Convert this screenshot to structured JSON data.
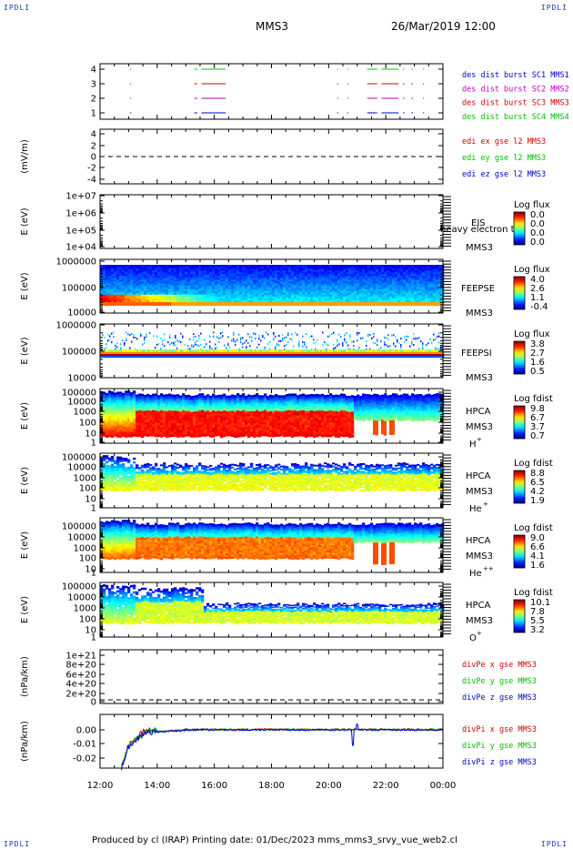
{
  "header": {
    "left": "MMS3",
    "right": "26/Mar/2019 12:00"
  },
  "corner_label": "IPDLI",
  "footer": "Produced by cl (IRAP)   Printing date: 01/Dec/2023   mms_mms3_srvy_vue_web2.cl",
  "time_axis": {
    "ticks": [
      "12:00",
      "14:00",
      "16:00",
      "18:00",
      "20:00",
      "22:00",
      "00:00"
    ],
    "start_hour": 12,
    "end_hour": 24
  },
  "colors": {
    "red": "#d40000",
    "green": "#00c000",
    "blue": "#0000d0",
    "magenta": "#c000c0",
    "black": "#000000"
  },
  "chart_data": [
    {
      "id": "p1",
      "type": "line",
      "ylabel": "",
      "yticks": [
        "1",
        "2",
        "3",
        "4"
      ],
      "legend": [
        {
          "text": "des dist burst SC1 MMS1",
          "color": "#0000d0"
        },
        {
          "text": "des dist burst SC2 MMS2",
          "color": "#c000c0"
        },
        {
          "text": "des dist burst SC3 MMS3",
          "color": "#d40000"
        },
        {
          "text": "des dist burst SC4 MMS4",
          "color": "#00c000"
        }
      ]
    },
    {
      "id": "p2",
      "type": "line",
      "ylabel": "(mV/m)",
      "ylim": [
        -4,
        4
      ],
      "yticks": [
        "4",
        "2",
        "0",
        "-2",
        "-4"
      ],
      "legend": [
        {
          "text": "edi ex gse l2 MMS3",
          "color": "#d40000"
        },
        {
          "text": "edi ey gse l2 MMS3",
          "color": "#00c000"
        },
        {
          "text": "edi ez gse l2 MMS3",
          "color": "#0000d0"
        }
      ]
    },
    {
      "id": "p3",
      "type": "heatmap",
      "ylabel": "E (eV)",
      "yticks": [
        "1e+07",
        "1e+06",
        "1e+05",
        "1e+04"
      ],
      "instrument": "EIS",
      "overlay": "heavy electron to",
      "sc": "MMS3",
      "cbar": {
        "title": "Log flux",
        "labels": [
          "0.0",
          "0.0",
          "0.0",
          "0.0"
        ]
      }
    },
    {
      "id": "p4",
      "type": "heatmap",
      "ylabel": "E (eV)",
      "yticks": [
        "1000000",
        "100000",
        "10000"
      ],
      "instrument": "FEEPSE",
      "sc": "MMS3",
      "cbar": {
        "title": "Log flux",
        "labels": [
          "4.0",
          "2.6",
          "1.1",
          "-0.4"
        ]
      }
    },
    {
      "id": "p5",
      "type": "heatmap",
      "ylabel": "E (eV)",
      "yticks": [
        "1000000",
        "100000",
        "10000"
      ],
      "instrument": "FEEPSI",
      "sc": "MMS3",
      "cbar": {
        "title": "Log flux",
        "labels": [
          "3.8",
          "2.7",
          "1.6",
          "0.5"
        ]
      }
    },
    {
      "id": "p6",
      "type": "heatmap",
      "ylabel": "E (eV)",
      "yticks": [
        "100000",
        "10000",
        "1000",
        "100",
        "10",
        "1"
      ],
      "instrument": "HPCA",
      "sc": "MMS3",
      "species": "H",
      "charge": "+",
      "cbar": {
        "title": "Log fdist",
        "labels": [
          "9.8",
          "6.7",
          "3.7",
          "0.7"
        ]
      }
    },
    {
      "id": "p7",
      "type": "heatmap",
      "ylabel": "E (eV)",
      "yticks": [
        "100000",
        "10000",
        "1000",
        "100",
        "10",
        "1"
      ],
      "instrument": "HPCA",
      "sc": "MMS3",
      "species": "He",
      "charge": "+",
      "cbar": {
        "title": "Log fdist",
        "labels": [
          "8.8",
          "6.5",
          "4.2",
          "1.9"
        ]
      }
    },
    {
      "id": "p8",
      "type": "heatmap",
      "ylabel": "E (eV)",
      "yticks": [
        "100000",
        "10000",
        "1000",
        "100",
        "10",
        "1"
      ],
      "instrument": "HPCA",
      "sc": "MMS3",
      "species": "He",
      "charge": "++",
      "cbar": {
        "title": "Log fdist",
        "labels": [
          "9.0",
          "6.6",
          "4.1",
          "1.6"
        ]
      }
    },
    {
      "id": "p9",
      "type": "heatmap",
      "ylabel": "E (eV)",
      "yticks": [
        "100000",
        "10000",
        "1000",
        "100",
        "10",
        "1"
      ],
      "instrument": "HPCA",
      "sc": "MMS3",
      "species": "O",
      "charge": "+",
      "cbar": {
        "title": "Log fdist",
        "labels": [
          "10.1",
          "7.8",
          "5.5",
          "3.2"
        ]
      }
    },
    {
      "id": "p10",
      "type": "line",
      "ylabel": "(nPa/km)",
      "yticks": [
        "1e+21",
        "8e+20",
        "6e+20",
        "4e+20",
        "2e+20",
        "0"
      ],
      "legend": [
        {
          "text": "divPe x gse MMS3",
          "color": "#d40000"
        },
        {
          "text": "divPe y gse MMS3",
          "color": "#00c000"
        },
        {
          "text": "divPe z gse MMS3",
          "color": "#0000d0"
        }
      ]
    },
    {
      "id": "p11",
      "type": "line",
      "ylabel": "(nPa/km)",
      "ylim": [
        -0.03,
        0.005
      ],
      "yticks": [
        "0.00",
        "-0.01",
        "-0.02"
      ],
      "legend": [
        {
          "text": "divPi x gse MMS3",
          "color": "#d40000"
        },
        {
          "text": "divPi y gse MMS3",
          "color": "#00c000"
        },
        {
          "text": "divPi z gse MMS3",
          "color": "#0000d0"
        }
      ]
    }
  ]
}
